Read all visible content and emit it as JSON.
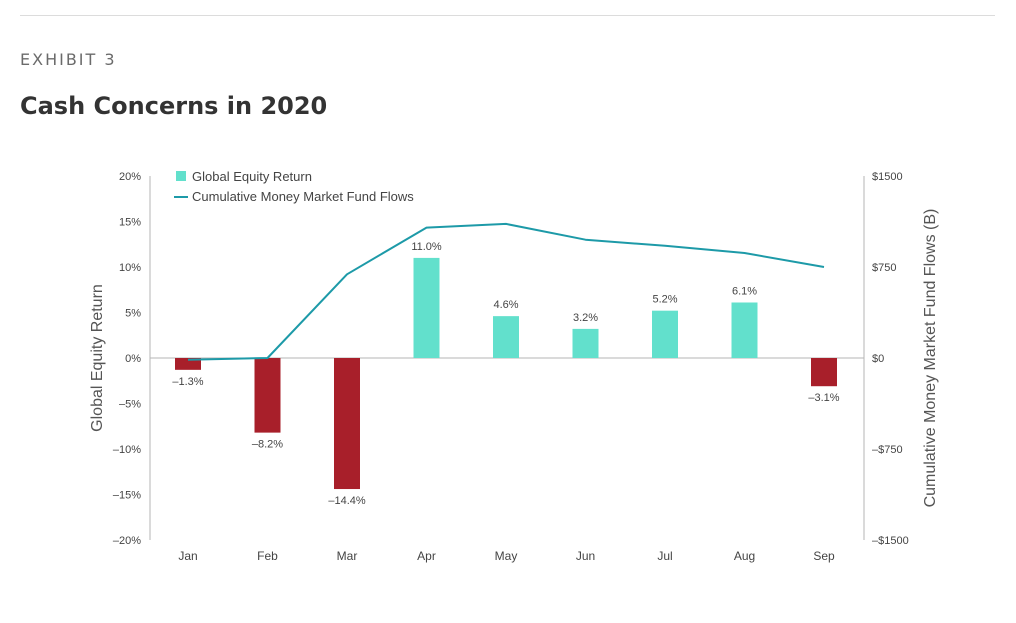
{
  "header": {
    "exhibit": "EXHIBIT 3",
    "title": "Cash Concerns in 2020"
  },
  "chart_data": {
    "type": "bar",
    "title": "",
    "categories": [
      "Jan",
      "Feb",
      "Mar",
      "Apr",
      "May",
      "Jun",
      "Jul",
      "Aug",
      "Sep"
    ],
    "series": [
      {
        "name": "Global Equity Return",
        "type": "bar",
        "axis": "left",
        "values": [
          -1.3,
          -8.2,
          -14.4,
          11.0,
          4.6,
          3.2,
          5.2,
          6.1,
          -3.1
        ],
        "labels": [
          "–1.3%",
          "–8.2%",
          "–14.4%",
          "11.0%",
          "4.6%",
          "3.2%",
          "5.2%",
          "6.1%",
          "–3.1%"
        ]
      },
      {
        "name": "Cumulative Money Market Fund Flows",
        "type": "line",
        "axis": "right",
        "values": [
          -15,
          0,
          690,
          1075,
          1105,
          975,
          925,
          865,
          750
        ]
      }
    ],
    "y_left": {
      "label": "Global Equity Return",
      "lim": [
        -20,
        20
      ],
      "ticks": [
        20,
        15,
        10,
        5,
        0,
        -5,
        -10,
        -15,
        -20
      ],
      "tick_labels": [
        "20%",
        "15%",
        "10%",
        "5%",
        "0%",
        "–5%",
        "–10%",
        "–15%",
        "–20%"
      ]
    },
    "y_right": {
      "label": "Cumulative Money Market Fund Flows (B)",
      "lim": [
        -1500,
        1500
      ],
      "ticks": [
        1500,
        750,
        0,
        -750,
        -1500
      ],
      "tick_labels": [
        "$1500",
        "$750",
        "$0",
        "–$750",
        "–$1500"
      ]
    },
    "legend_position": "top-left",
    "grid": false,
    "colors": {
      "positive_bar": "#62e0cc",
      "negative_bar": "#a81f2a",
      "line": "#1d9aa8",
      "axis": "#b5b5b5",
      "text": "#444444"
    }
  }
}
